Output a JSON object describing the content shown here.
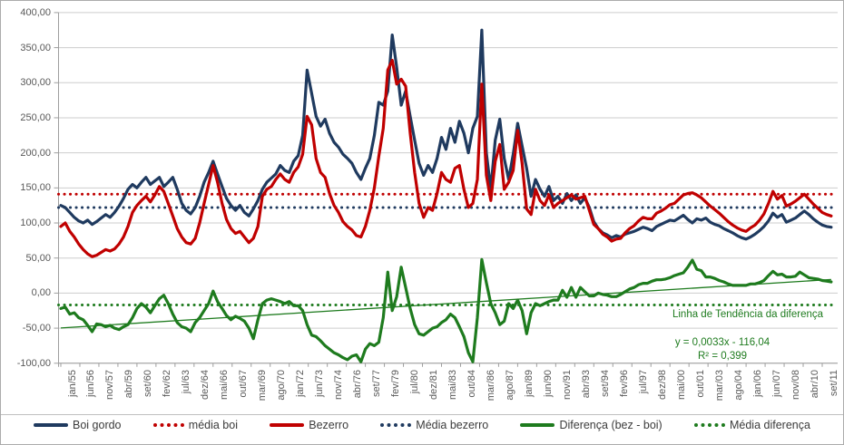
{
  "chart_data": {
    "type": "line",
    "title": "",
    "x_axis": {
      "tick_labels": [
        "jan/55",
        "jun/56",
        "nov/57",
        "abr/59",
        "set/60",
        "fev/62",
        "jul/63",
        "dez/64",
        "mai/66",
        "out/67",
        "mar/69",
        "ago/70",
        "jan/72",
        "jun/73",
        "nov/74",
        "abr/76",
        "set/77",
        "fev/79",
        "jul/80",
        "dez/81",
        "mai/83",
        "out/84",
        "mar/86",
        "ago/87",
        "jan/89",
        "jun/90",
        "nov/91",
        "abr/93",
        "set/94",
        "fev/96",
        "jul/97",
        "dez/98",
        "mai/00",
        "out/01",
        "mar/03",
        "ago/04",
        "jan/06",
        "jun/07",
        "nov/08",
        "abr/10",
        "set/11"
      ],
      "months_between_ticks": 17,
      "total_months": 688
    },
    "y_axis": {
      "min": -100,
      "max": 400,
      "step": 50,
      "tick_labels": [
        "400,00",
        "350,00",
        "300,00",
        "250,00",
        "200,00",
        "150,00",
        "100,00",
        "50,00",
        "0,00",
        "-50,00",
        "-100,00"
      ],
      "grid": true
    },
    "sample_step_months": 4,
    "series": [
      {
        "name": "Boi gordo",
        "color": "#1f3a5f",
        "style": "solid",
        "values": [
          125,
          122,
          115,
          108,
          103,
          100,
          104,
          98,
          102,
          107,
          112,
          108,
          115,
          124,
          135,
          148,
          155,
          150,
          158,
          165,
          155,
          160,
          165,
          152,
          158,
          165,
          148,
          128,
          118,
          113,
          122,
          138,
          158,
          172,
          188,
          170,
          152,
          135,
          125,
          118,
          125,
          115,
          110,
          120,
          132,
          148,
          158,
          164,
          170,
          182,
          175,
          172,
          188,
          196,
          225,
          318,
          285,
          252,
          238,
          248,
          228,
          215,
          208,
          198,
          192,
          185,
          172,
          162,
          178,
          192,
          225,
          272,
          268,
          288,
          368,
          322,
          268,
          288,
          252,
          218,
          185,
          168,
          182,
          172,
          192,
          222,
          205,
          235,
          215,
          245,
          228,
          200,
          235,
          252,
          375,
          200,
          148,
          218,
          248,
          192,
          162,
          198,
          242,
          210,
          178,
          138,
          162,
          148,
          138,
          152,
          132,
          138,
          128,
          142,
          132,
          140,
          128,
          136,
          122,
          102,
          92,
          86,
          83,
          79,
          82,
          80,
          84,
          86,
          88,
          91,
          94,
          92,
          89,
          95,
          98,
          101,
          104,
          103,
          107,
          111,
          105,
          100,
          106,
          104,
          107,
          101,
          98,
          96,
          92,
          89,
          86,
          82,
          79,
          77,
          80,
          84,
          89,
          95,
          103,
          114,
          108,
          112,
          101,
          104,
          107,
          112,
          117,
          112,
          106,
          101,
          97,
          95,
          94
        ]
      },
      {
        "name": "Bezerro",
        "color": "#c00000",
        "style": "solid",
        "values": [
          95,
          100,
          88,
          80,
          70,
          62,
          56,
          52,
          54,
          58,
          62,
          60,
          63,
          70,
          80,
          95,
          115,
          125,
          132,
          138,
          130,
          140,
          152,
          145,
          128,
          110,
          92,
          80,
          72,
          70,
          78,
          100,
          128,
          155,
          182,
          158,
          128,
          105,
          92,
          85,
          88,
          80,
          72,
          78,
          95,
          138,
          148,
          152,
          162,
          170,
          162,
          158,
          172,
          180,
          198,
          252,
          240,
          192,
          172,
          165,
          142,
          125,
          115,
          102,
          95,
          90,
          82,
          80,
          95,
          118,
          150,
          195,
          235,
          318,
          332,
          298,
          305,
          295,
          228,
          172,
          128,
          108,
          122,
          118,
          142,
          172,
          162,
          158,
          178,
          182,
          148,
          122,
          128,
          162,
          298,
          168,
          132,
          188,
          212,
          148,
          158,
          175,
          232,
          185,
          120,
          112,
          148,
          132,
          125,
          140,
          122,
          128,
          132,
          136,
          140,
          134,
          136,
          138,
          118,
          98,
          92,
          84,
          80,
          74,
          77,
          78,
          86,
          92,
          96,
          103,
          108,
          106,
          106,
          114,
          117,
          121,
          126,
          128,
          134,
          140,
          142,
          143,
          140,
          136,
          130,
          124,
          119,
          114,
          108,
          102,
          97,
          93,
          90,
          88,
          93,
          97,
          104,
          113,
          128,
          145,
          134,
          139,
          124,
          127,
          131,
          136,
          141,
          134,
          127,
          121,
          115,
          112,
          110
        ]
      },
      {
        "name": "Diferença (bez - boi)",
        "color": "#1e7b1e",
        "style": "solid",
        "values": [
          -22,
          -20,
          -30,
          -28,
          -35,
          -38,
          -46,
          -55,
          -44,
          -45,
          -48,
          -46,
          -50,
          -52,
          -48,
          -45,
          -35,
          -22,
          -15,
          -20,
          -28,
          -18,
          -8,
          -3,
          -15,
          -30,
          -42,
          -48,
          -50,
          -55,
          -42,
          -35,
          -25,
          -15,
          3,
          -12,
          -22,
          -32,
          -38,
          -33,
          -36,
          -40,
          -50,
          -65,
          -38,
          -15,
          -10,
          -8,
          -10,
          -12,
          -15,
          -12,
          -18,
          -18,
          -25,
          -45,
          -60,
          -62,
          -68,
          -75,
          -80,
          -85,
          -88,
          -92,
          -95,
          -90,
          -88,
          -98,
          -80,
          -72,
          -75,
          -70,
          -35,
          30,
          -25,
          -5,
          37,
          8,
          -22,
          -45,
          -58,
          -60,
          -55,
          -50,
          -48,
          -42,
          -38,
          -30,
          -35,
          -48,
          -62,
          -85,
          -98,
          -35,
          48,
          15,
          -15,
          -28,
          -45,
          -40,
          -15,
          -22,
          -10,
          -25,
          -58,
          -28,
          -15,
          -18,
          -15,
          -12,
          -10,
          -10,
          4,
          -6,
          8,
          -6,
          8,
          2,
          -4,
          -4,
          0,
          -2,
          -3,
          -5,
          -5,
          -2,
          2,
          6,
          8,
          12,
          14,
          14,
          17,
          19,
          19,
          20,
          22,
          25,
          27,
          29,
          37,
          47,
          34,
          32,
          23,
          23,
          21,
          18,
          16,
          13,
          11,
          11,
          11,
          11,
          13,
          13,
          15,
          18,
          25,
          31,
          26,
          27,
          23,
          23,
          24,
          30,
          26,
          22,
          21,
          20,
          18,
          17,
          16
        ]
      }
    ],
    "reference_lines": [
      {
        "name": "média boi",
        "color": "#c00000",
        "style": "dotted",
        "value": 141
      },
      {
        "name": "Média bezerro",
        "color": "#1f3a5f",
        "style": "dotted",
        "value": 122
      },
      {
        "name": "Média diferença",
        "color": "#1e7b1e",
        "style": "dotted",
        "value": -17
      }
    ],
    "trendline": {
      "name": "Linha de Tendência da diferença",
      "color": "#1e7b1e",
      "start_value": -49.7,
      "end_value": 19.4,
      "equation": "y = 0,0033x - 116,04",
      "r_squared": "R² = 0,399"
    },
    "legend_position": "bottom"
  },
  "legend": {
    "items": [
      {
        "label": "Boi gordo",
        "color": "#1f3a5f",
        "style": "solid"
      },
      {
        "label": "média boi",
        "color": "#c00000",
        "style": "dotted"
      },
      {
        "label": "Bezerro",
        "color": "#c00000",
        "style": "solid"
      },
      {
        "label": "Média bezerro",
        "color": "#1f3a5f",
        "style": "dotted"
      },
      {
        "label": "Diferença (bez - boi)",
        "color": "#1e7b1e",
        "style": "solid"
      },
      {
        "label": "Média diferença",
        "color": "#1e7b1e",
        "style": "dotted"
      }
    ]
  },
  "colors": {
    "grid": "#cdcdcd",
    "axis": "#9e9e9e",
    "axis_text": "#595959",
    "legend_text": "#3b3b3b",
    "background": "#ffffff"
  }
}
